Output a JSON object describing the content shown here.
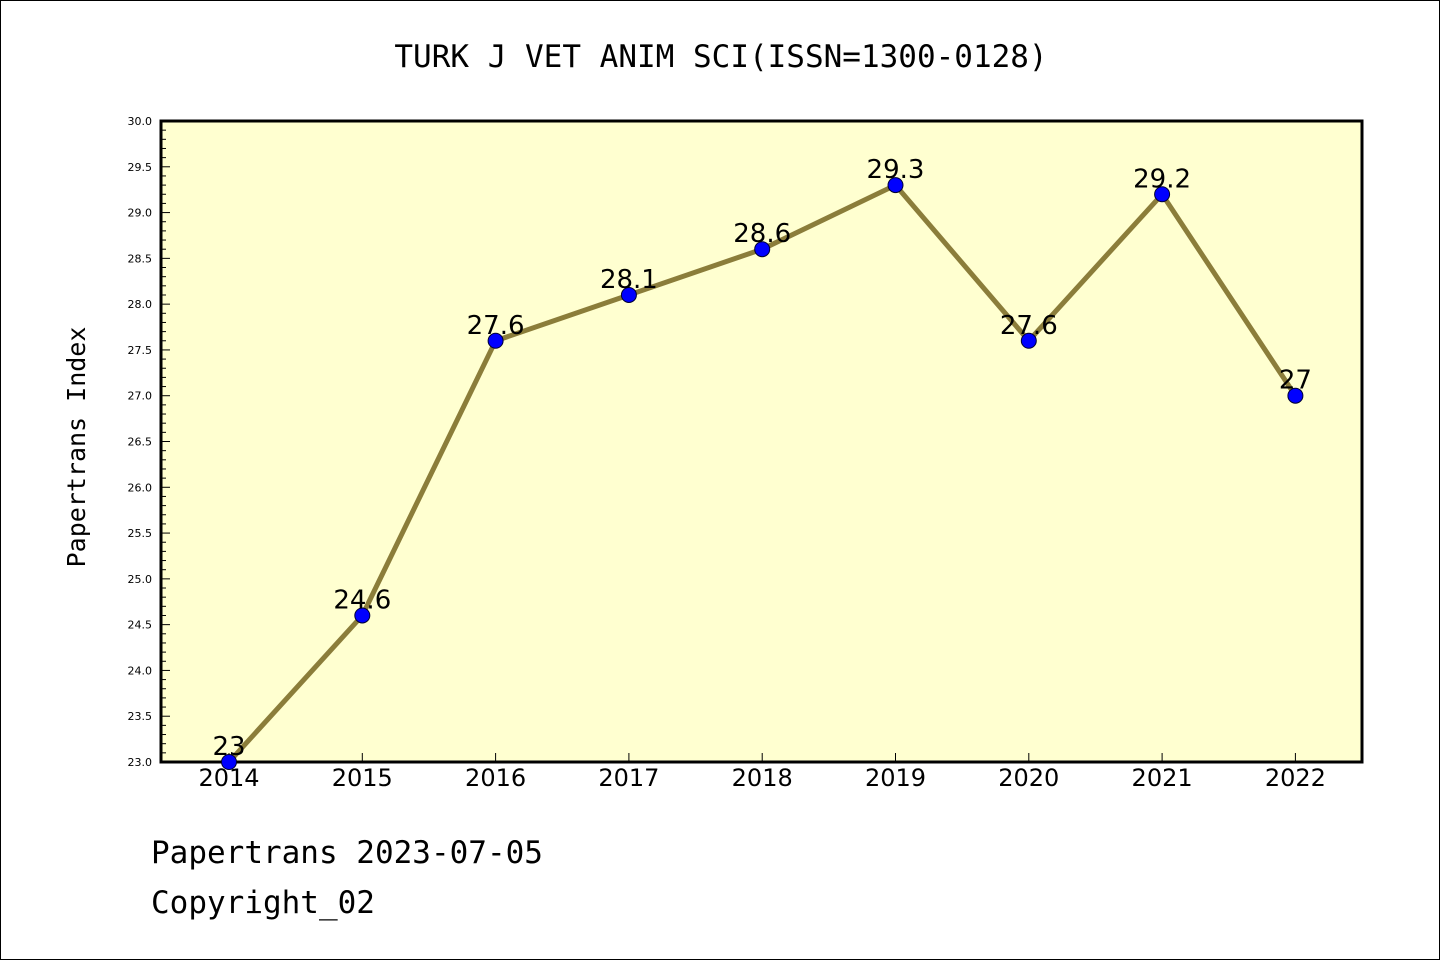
{
  "chart_data": {
    "type": "line",
    "title": "TURK J VET ANIM SCI(ISSN=1300-0128)",
    "xlabel": "",
    "ylabel": "Papertrans Index",
    "categories": [
      "2014",
      "2015",
      "2016",
      "2017",
      "2018",
      "2019",
      "2020",
      "2021",
      "2022"
    ],
    "values": [
      23,
      24.6,
      27.6,
      28.1,
      28.6,
      29.3,
      27.6,
      29.2,
      27
    ],
    "data_labels": [
      "23",
      "24.6",
      "27.6",
      "28.1",
      "28.6",
      "29.3",
      "27.6",
      "29.2",
      "27"
    ],
    "ylim": [
      23.0,
      30.0
    ],
    "ytick_labels": [
      "23.0",
      "23.5",
      "24.0",
      "24.5",
      "25.0",
      "25.5",
      "26.0",
      "26.5",
      "27.0",
      "27.5",
      "28.0",
      "28.5",
      "29.0",
      "29.5",
      "30.0"
    ],
    "grid": false,
    "legend": "none",
    "colors": {
      "plot_background": "#ffffd0",
      "line": "#8b7d3a",
      "marker": "#0000ff"
    }
  },
  "footer": {
    "date_line": "Papertrans 2023-07-05",
    "copyright_line": "Copyright_02"
  }
}
